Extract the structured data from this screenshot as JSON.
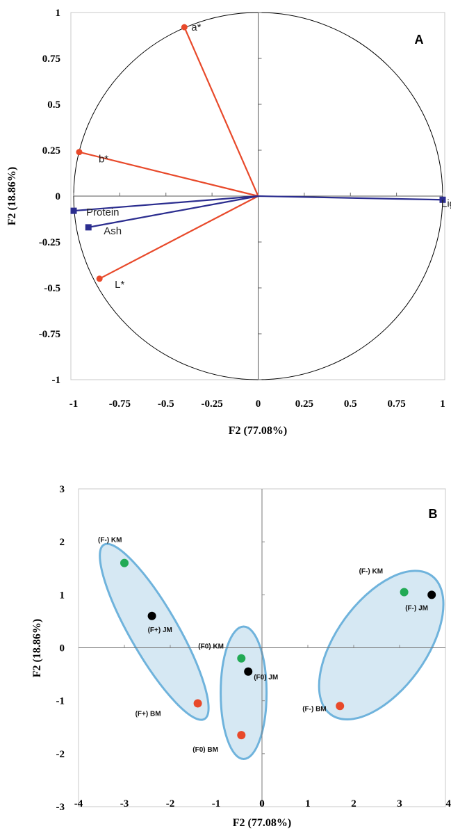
{
  "chart_data": [
    {
      "type": "scatter",
      "panel_label": "A",
      "xlabel": "F2 (77.08%)",
      "ylabel": "F2 (18.86%)",
      "xlim": [
        -1,
        1
      ],
      "ylim": [
        -1,
        1
      ],
      "x_ticks": [
        "-1",
        "-0.75",
        "-0.5",
        "-0.25",
        "0",
        "0.25",
        "0.5",
        "0.75",
        "1"
      ],
      "y_ticks": [
        "1",
        "0.75",
        "0.5",
        "0.25",
        "0",
        "-0.25",
        "-0.5",
        "-0.75",
        "-1"
      ],
      "correlation_circle": true,
      "vectors": [
        {
          "label": "a*",
          "x": -0.4,
          "y": 0.92,
          "color": "#e8492a",
          "marker": "circle"
        },
        {
          "label": "b*",
          "x": -0.97,
          "y": 0.24,
          "color": "#e8492a",
          "marker": "circle"
        },
        {
          "label": "L*",
          "x": -0.86,
          "y": -0.45,
          "color": "#e8492a",
          "marker": "circle"
        },
        {
          "label": "Protein",
          "x": -1.0,
          "y": -0.08,
          "color": "#2b2d8f",
          "marker": "square"
        },
        {
          "label": "Ash",
          "x": -0.92,
          "y": -0.17,
          "color": "#2b2d8f",
          "marker": "square"
        },
        {
          "label": "Ligh",
          "x": 1.0,
          "y": -0.02,
          "color": "#2b2d8f",
          "marker": "square"
        }
      ]
    },
    {
      "type": "scatter",
      "panel_label": "B",
      "xlabel": "F2 (77.08%)",
      "ylabel": "F2 (18.86%)",
      "xlim": [
        -4,
        4
      ],
      "ylim": [
        -3,
        3
      ],
      "x_ticks": [
        "-4",
        "-3",
        "-2",
        "-1",
        "0",
        "1",
        "2",
        "3",
        "4"
      ],
      "y_ticks": [
        "3",
        "2",
        "1",
        "0",
        "-1",
        "-2",
        "-3"
      ],
      "points": [
        {
          "label": "(F-) KM",
          "x": -3.0,
          "y": 1.6,
          "color": "#22aa55"
        },
        {
          "label": "(F+) JM",
          "x": -2.4,
          "y": 0.6,
          "color": "#000000"
        },
        {
          "label": "(F+) BM",
          "x": -1.4,
          "y": -1.05,
          "color": "#e8492a"
        },
        {
          "label": "(F0) KM",
          "x": -0.45,
          "y": -0.2,
          "color": "#22aa55"
        },
        {
          "label": "(F0) JM",
          "x": -0.3,
          "y": -0.45,
          "color": "#000000"
        },
        {
          "label": "(F0) BM",
          "x": -0.45,
          "y": -1.65,
          "color": "#e8492a"
        },
        {
          "label": "(F-) KM",
          "x": 3.1,
          "y": 1.05,
          "color": "#22aa55"
        },
        {
          "label": "(F-) JM",
          "x": 3.7,
          "y": 1.0,
          "color": "#000000"
        },
        {
          "label": "(F-) BM",
          "x": 1.7,
          "y": -1.1,
          "color": "#e8492a"
        }
      ],
      "clusters": [
        {
          "cx": -2.35,
          "cy": 0.3,
          "rx": 0.52,
          "ry": 1.9,
          "rotate_deg": -30
        },
        {
          "cx": -0.4,
          "cy": -0.85,
          "rx": 0.5,
          "ry": 1.25,
          "rotate_deg": 0
        },
        {
          "cx": 2.6,
          "cy": 0.05,
          "rx": 0.98,
          "ry": 1.62,
          "rotate_deg": 36
        }
      ]
    }
  ]
}
